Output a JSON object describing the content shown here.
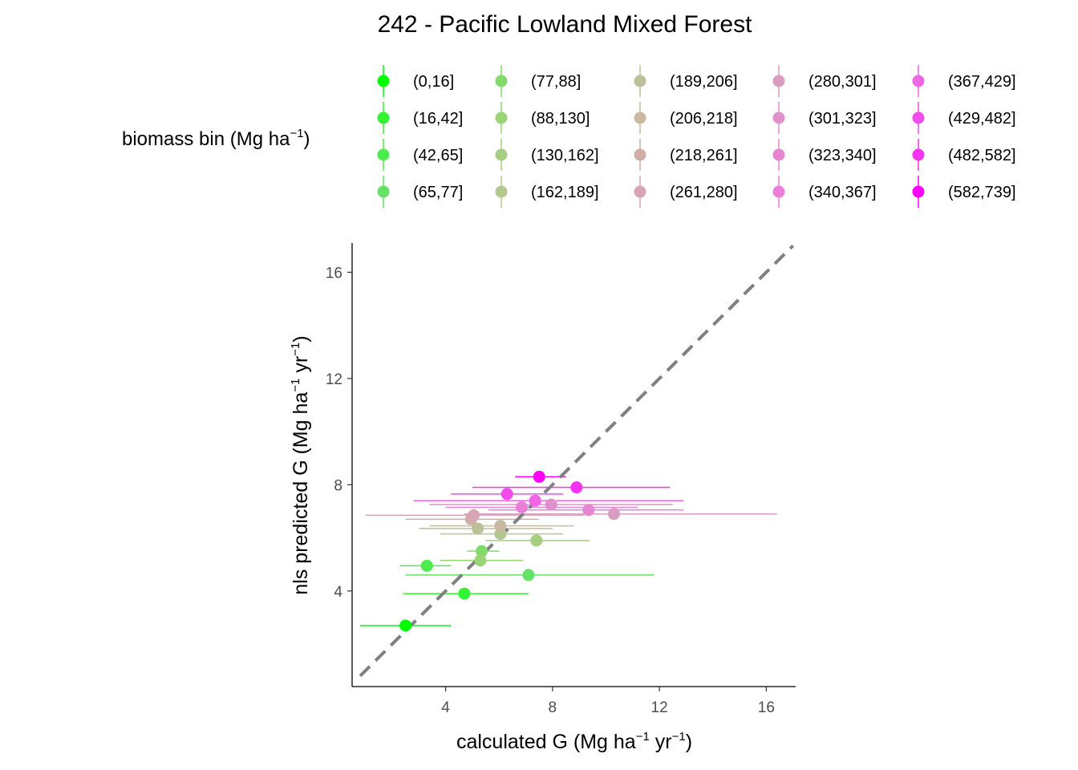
{
  "chart_data": {
    "type": "scatter",
    "title": "242 - Pacific Lowland Mixed Forest",
    "xlabel": {
      "prefix": "calculated G (Mg ha",
      "sup1": "−1",
      "mid": " yr",
      "sup2": "−1",
      "suffix": ")"
    },
    "ylabel": {
      "prefix": "nls predicted G (Mg ha",
      "sup1": "−1",
      "mid": " yr",
      "sup2": "−1",
      "suffix": ")"
    },
    "xlim": [
      0.5,
      17.1
    ],
    "ylim": [
      0.4,
      17.1
    ],
    "xticks": [
      4,
      8,
      12,
      16
    ],
    "yticks": [
      4,
      8,
      12,
      16
    ],
    "xtick_labels": [
      "4",
      "8",
      "12",
      "16"
    ],
    "ytick_labels": [
      "4",
      "8",
      "12",
      "16"
    ],
    "grid": false,
    "reference_line": {
      "type": "identity",
      "style": "dashed",
      "color": "#808080"
    },
    "legend": {
      "title": {
        "prefix": "biomass bin (Mg ha",
        "sup": "−1",
        "suffix": ")"
      },
      "position": "top",
      "columns": 5
    },
    "series": [
      {
        "name": "(0,16]",
        "color": "#00FF00",
        "x": 2.5,
        "y": 2.7,
        "xmin": 0.8,
        "xmax": 4.2
      },
      {
        "name": "(16,42]",
        "color": "#33F333",
        "x": 4.7,
        "y": 3.9,
        "xmin": 2.4,
        "xmax": 7.1
      },
      {
        "name": "(42,65]",
        "color": "#4DEB4D",
        "x": 3.3,
        "y": 4.95,
        "xmin": 2.3,
        "xmax": 4.2
      },
      {
        "name": "(65,77]",
        "color": "#66E066",
        "x": 7.1,
        "y": 4.6,
        "xmin": 2.5,
        "xmax": 11.8
      },
      {
        "name": "(77,88]",
        "color": "#80DB6B",
        "x": 5.35,
        "y": 5.5,
        "xmin": 4.8,
        "xmax": 6.0
      },
      {
        "name": "(88,130]",
        "color": "#99D577",
        "x": 5.3,
        "y": 5.15,
        "xmin": 3.8,
        "xmax": 6.9
      },
      {
        "name": "(130,162]",
        "color": "#A6CE80",
        "x": 7.4,
        "y": 5.9,
        "xmin": 5.5,
        "xmax": 9.4
      },
      {
        "name": "(162,189]",
        "color": "#B3C88E",
        "x": 6.05,
        "y": 6.15,
        "xmin": 3.8,
        "xmax": 8.4
      },
      {
        "name": "(189,206]",
        "color": "#BCBF98",
        "x": 5.2,
        "y": 6.35,
        "xmin": 3.0,
        "xmax": 8.0
      },
      {
        "name": "(206,218]",
        "color": "#C8B9A0",
        "x": 6.05,
        "y": 6.45,
        "xmin": 3.4,
        "xmax": 8.8
      },
      {
        "name": "(218,261]",
        "color": "#CFAFA5",
        "x": 4.95,
        "y": 6.7,
        "xmin": 2.5,
        "xmax": 7.5
      },
      {
        "name": "(261,280]",
        "color": "#D6A6B4",
        "x": 5.05,
        "y": 6.85,
        "xmin": 1.0,
        "xmax": 9.2
      },
      {
        "name": "(280,301]",
        "color": "#DB9CC2",
        "x": 10.3,
        "y": 6.9,
        "xmin": 4.7,
        "xmax": 16.4
      },
      {
        "name": "(301,323]",
        "color": "#E091CB",
        "x": 7.95,
        "y": 7.25,
        "xmin": 3.4,
        "xmax": 12.5
      },
      {
        "name": "(323,340]",
        "color": "#E686D1",
        "x": 9.35,
        "y": 7.05,
        "xmin": 5.6,
        "xmax": 12.9
      },
      {
        "name": "(340,367]",
        "color": "#EB7DDB",
        "x": 6.85,
        "y": 7.15,
        "xmin": 4.0,
        "xmax": 11.2
      },
      {
        "name": "(367,429]",
        "color": "#F066E6",
        "x": 7.35,
        "y": 7.4,
        "xmin": 2.8,
        "xmax": 12.9
      },
      {
        "name": "(429,482]",
        "color": "#F24DEB",
        "x": 6.3,
        "y": 7.65,
        "xmin": 4.2,
        "xmax": 8.4
      },
      {
        "name": "(482,582]",
        "color": "#F533F0",
        "x": 8.9,
        "y": 7.9,
        "xmin": 5.0,
        "xmax": 12.4
      },
      {
        "name": "(582,739]",
        "color": "#FF00FF",
        "x": 7.5,
        "y": 8.3,
        "xmin": 6.6,
        "xmax": 8.5
      }
    ]
  }
}
